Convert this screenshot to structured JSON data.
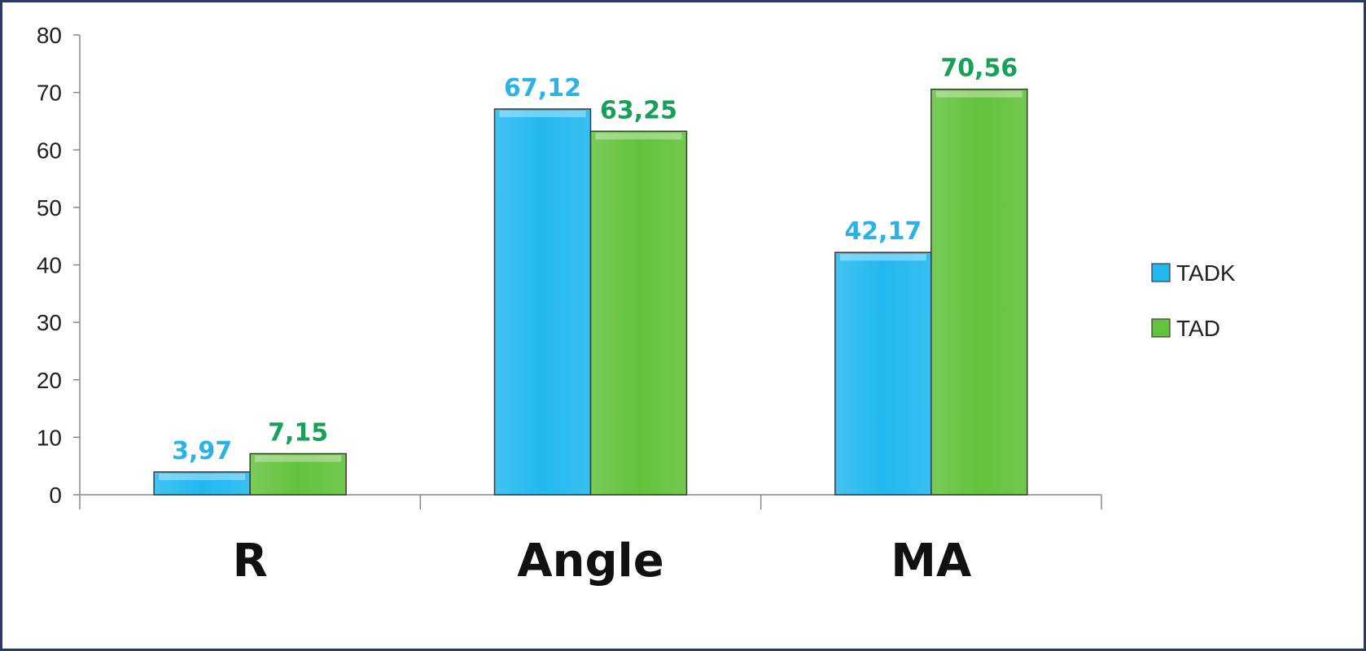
{
  "chart_data": {
    "type": "bar",
    "categories": [
      "R",
      "Angle",
      "MA"
    ],
    "series": [
      {
        "name": "TADK",
        "values": [
          3.97,
          67.12,
          42.17
        ],
        "labels": [
          "3,97",
          "67,12",
          "42,17"
        ],
        "color": "#22b8ef",
        "label_color": "#2bb3e8"
      },
      {
        "name": "TAD",
        "values": [
          7.15,
          63.25,
          70.56
        ],
        "labels": [
          "7,15",
          "63,25",
          "70,56"
        ],
        "color": "#63c23c",
        "label_color": "#18a05a"
      }
    ],
    "ylim": [
      0,
      80
    ],
    "yticks": [
      "0",
      "10",
      "20",
      "30",
      "40",
      "50",
      "60",
      "70",
      "80"
    ],
    "title": "",
    "xlabel": "",
    "ylabel": "",
    "grid": false,
    "legend": "right"
  }
}
